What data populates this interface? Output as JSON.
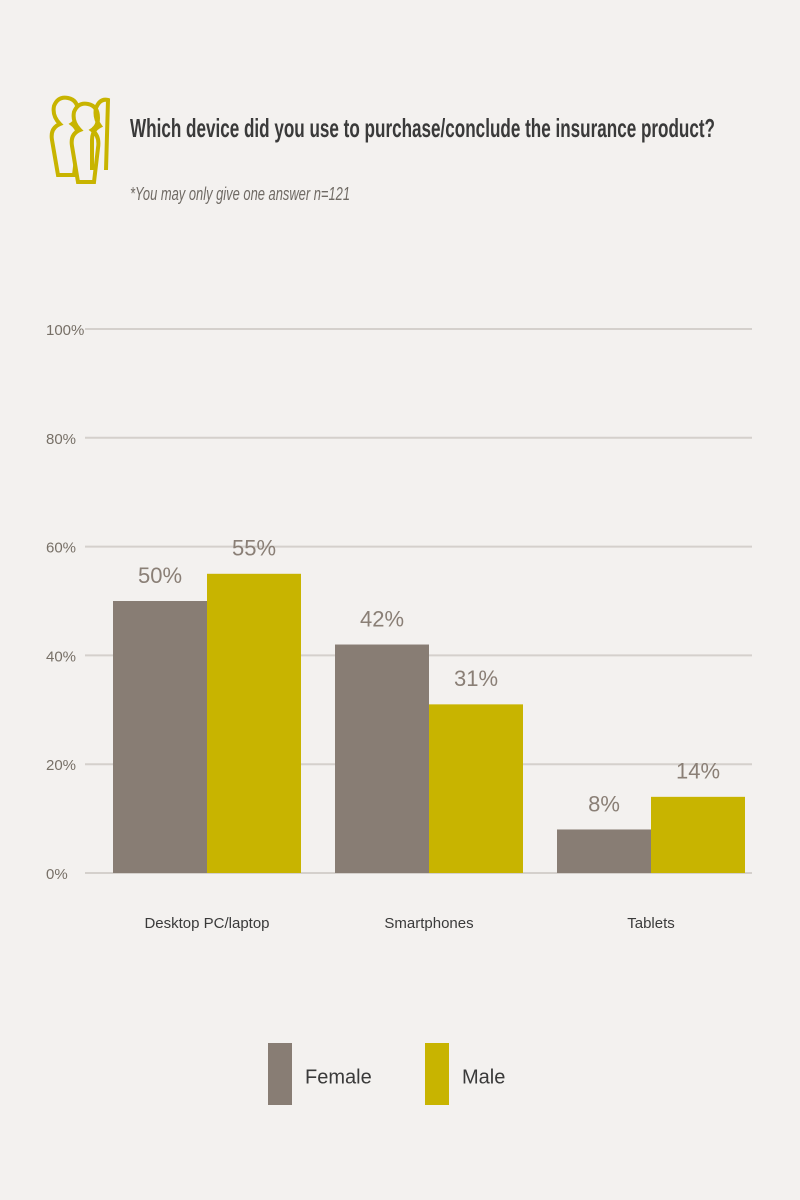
{
  "chart_data": {
    "type": "bar",
    "title": "Which device did you use to purchase/conclude the insurance product?",
    "subtitle": "*You may only give one answer n=121",
    "categories": [
      "Desktop PC/laptop",
      "Smartphones",
      "Tablets"
    ],
    "series": [
      {
        "name": "Female",
        "color": "#887d74",
        "values": [
          50,
          42,
          8
        ],
        "value_labels": [
          "50%",
          "42%",
          "8%"
        ]
      },
      {
        "name": "Male",
        "color": "#c8b400",
        "values": [
          55,
          31,
          14
        ],
        "value_labels": [
          "55%",
          "31%",
          "14%"
        ]
      }
    ],
    "ylim": [
      0,
      100
    ],
    "yticks": [
      {
        "value": 0,
        "label": "0%"
      },
      {
        "value": 20,
        "label": "20%"
      },
      {
        "value": 40,
        "label": "40%"
      },
      {
        "value": 60,
        "label": "60%"
      },
      {
        "value": 80,
        "label": "80%"
      },
      {
        "value": 100,
        "label": "100%"
      }
    ],
    "grid": true
  }
}
